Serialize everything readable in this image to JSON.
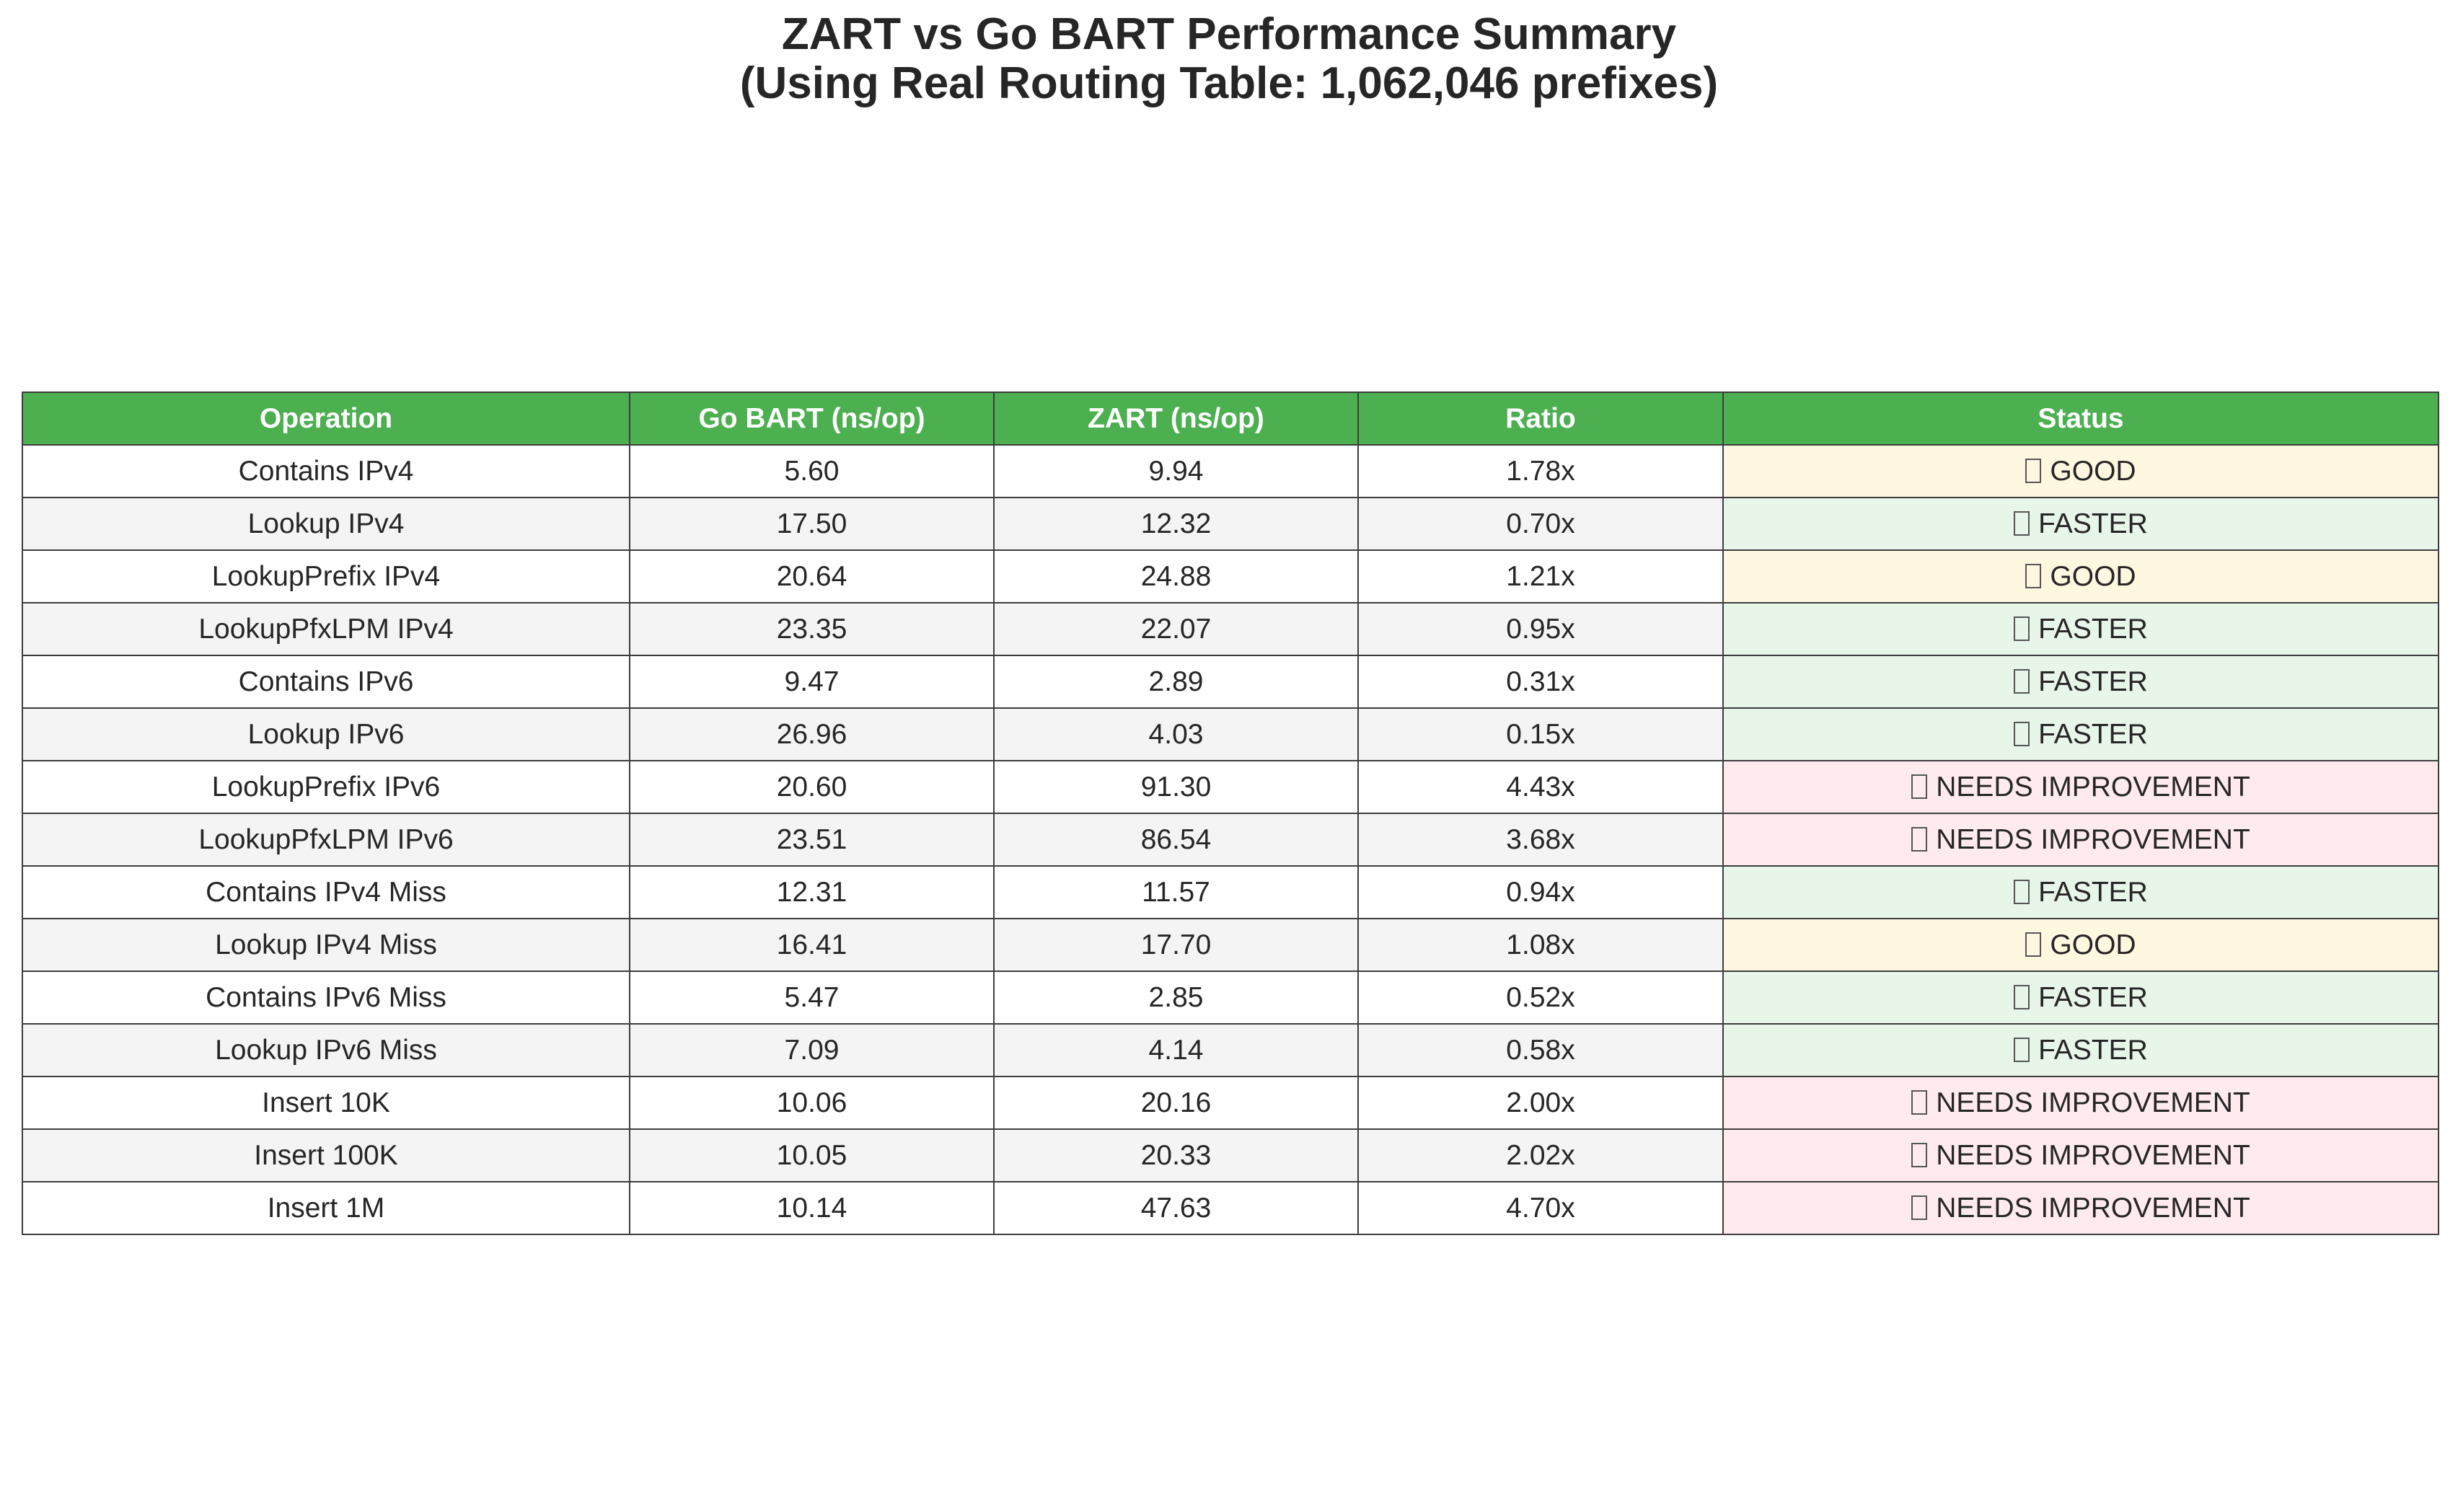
{
  "chart_data": {
    "type": "table",
    "title_line1": "ZART vs Go BART Performance Summary",
    "title_line2": "(Using Real Routing Table: 1,062,046 prefixes)",
    "columns": [
      "Operation",
      "Go BART (ns/op)",
      "ZART (ns/op)",
      "Ratio",
      "Status"
    ],
    "status_colors": {
      "GOOD": "#fff8e1",
      "FASTER": "#e8f5e9",
      "NEEDS IMPROVEMENT": "#ffebee",
      "header": "#4caf50"
    },
    "rows": [
      {
        "operation": "Contains IPv4",
        "go_bart": "5.60",
        "zart": "9.94",
        "ratio": "1.78x",
        "status": "GOOD"
      },
      {
        "operation": "Lookup IPv4",
        "go_bart": "17.50",
        "zart": "12.32",
        "ratio": "0.70x",
        "status": "FASTER"
      },
      {
        "operation": "LookupPrefix IPv4",
        "go_bart": "20.64",
        "zart": "24.88",
        "ratio": "1.21x",
        "status": "GOOD"
      },
      {
        "operation": "LookupPfxLPM IPv4",
        "go_bart": "23.35",
        "zart": "22.07",
        "ratio": "0.95x",
        "status": "FASTER"
      },
      {
        "operation": "Contains IPv6",
        "go_bart": "9.47",
        "zart": "2.89",
        "ratio": "0.31x",
        "status": "FASTER"
      },
      {
        "operation": "Lookup IPv6",
        "go_bart": "26.96",
        "zart": "4.03",
        "ratio": "0.15x",
        "status": "FASTER"
      },
      {
        "operation": "LookupPrefix IPv6",
        "go_bart": "20.60",
        "zart": "91.30",
        "ratio": "4.43x",
        "status": "NEEDS IMPROVEMENT"
      },
      {
        "operation": "LookupPfxLPM IPv6",
        "go_bart": "23.51",
        "zart": "86.54",
        "ratio": "3.68x",
        "status": "NEEDS IMPROVEMENT"
      },
      {
        "operation": "Contains IPv4 Miss",
        "go_bart": "12.31",
        "zart": "11.57",
        "ratio": "0.94x",
        "status": "FASTER"
      },
      {
        "operation": "Lookup IPv4 Miss",
        "go_bart": "16.41",
        "zart": "17.70",
        "ratio": "1.08x",
        "status": "GOOD"
      },
      {
        "operation": "Contains IPv6 Miss",
        "go_bart": "5.47",
        "zart": "2.85",
        "ratio": "0.52x",
        "status": "FASTER"
      },
      {
        "operation": "Lookup IPv6 Miss",
        "go_bart": "7.09",
        "zart": "4.14",
        "ratio": "0.58x",
        "status": "FASTER"
      },
      {
        "operation": "Insert 10K",
        "go_bart": "10.06",
        "zart": "20.16",
        "ratio": "2.00x",
        "status": "NEEDS IMPROVEMENT"
      },
      {
        "operation": "Insert 100K",
        "go_bart": "10.05",
        "zart": "20.33",
        "ratio": "2.02x",
        "status": "NEEDS IMPROVEMENT"
      },
      {
        "operation": "Insert 1M",
        "go_bart": "10.14",
        "zart": "47.63",
        "ratio": "4.70x",
        "status": "NEEDS IMPROVEMENT"
      }
    ]
  }
}
